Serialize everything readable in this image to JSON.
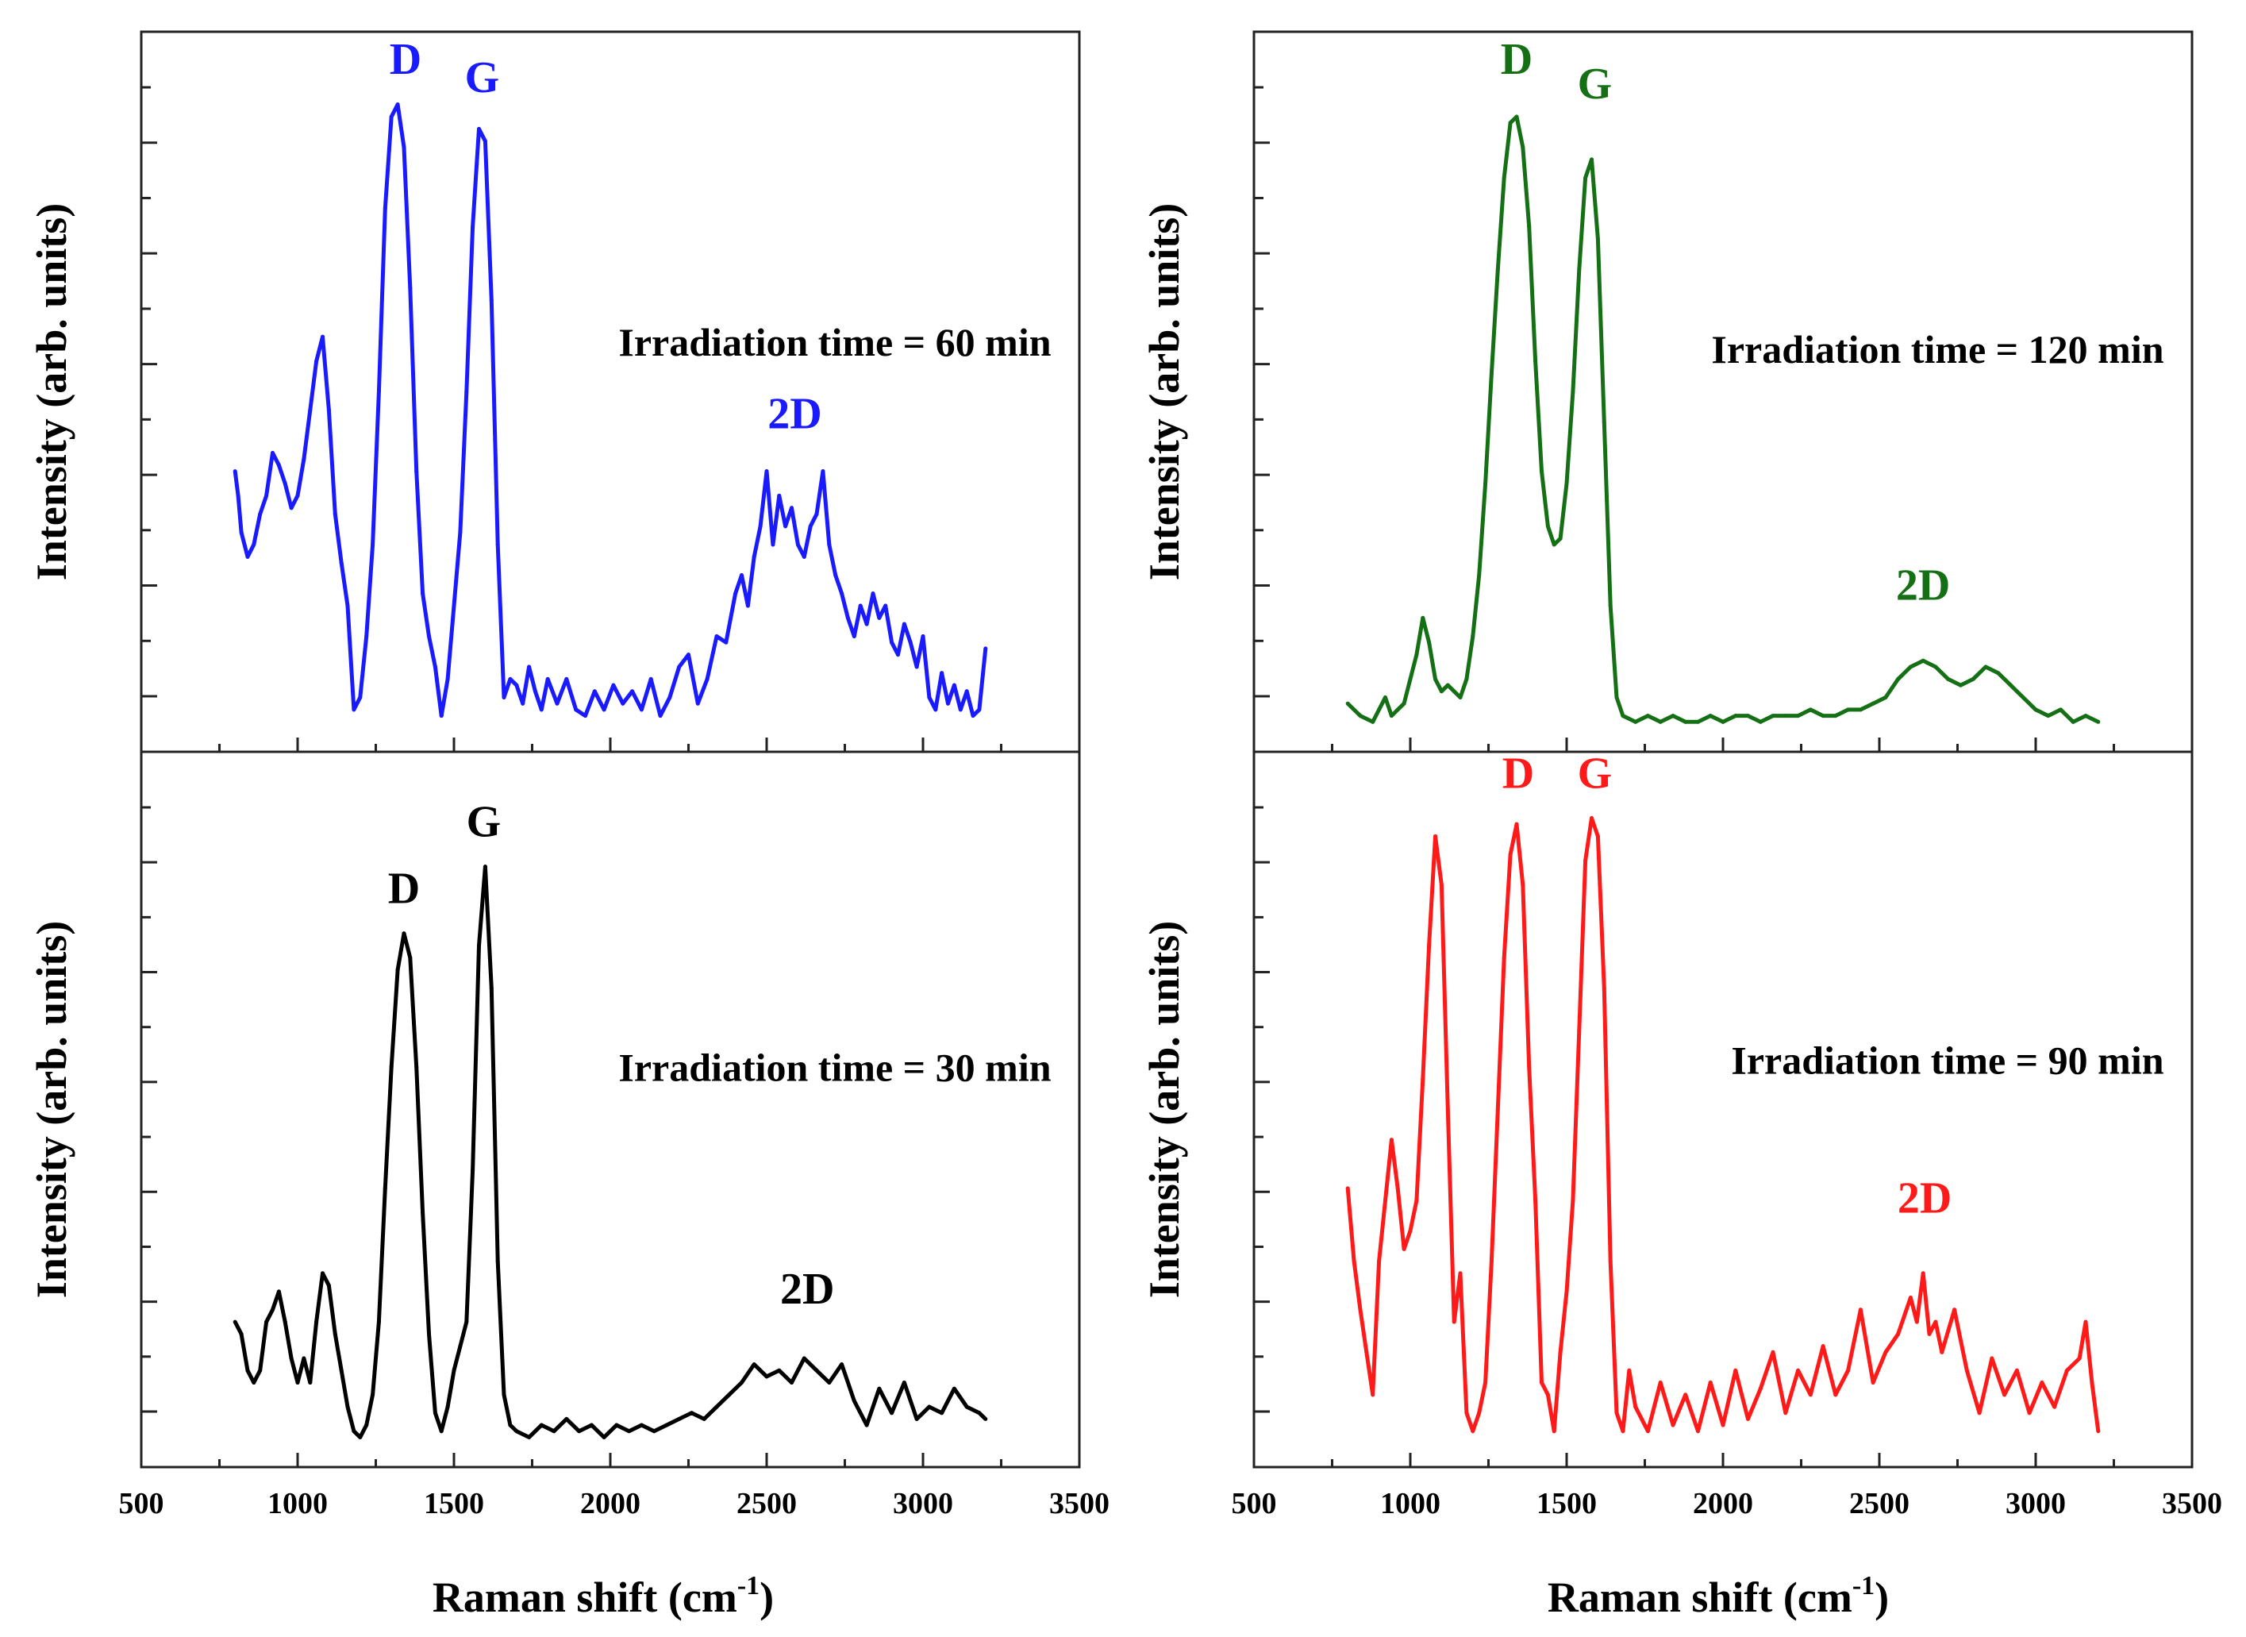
{
  "figure": {
    "xlabel_main": "Raman shift (cm",
    "xlabel_sup": "-1",
    "xlabel_end": ")",
    "ylabel": "Intensity (arb. units)"
  },
  "chart_data": [
    {
      "type": "line",
      "panel": "top-left",
      "color": "#1a1aff",
      "annotation": "Irradiation time = 60 min",
      "xlabel": "",
      "ylabel": "Intensity (arb. units)",
      "xlim": [
        500,
        3500
      ],
      "ylim": [
        0,
        1.1
      ],
      "xticks": [],
      "peak_labels": [
        {
          "text": "D",
          "x": 1345,
          "y": 1.07
        },
        {
          "text": "G",
          "x": 1590,
          "y": 1.04
        },
        {
          "text": "2D",
          "x": 2590,
          "y": 0.49
        }
      ],
      "x": [
        800,
        810,
        820,
        840,
        860,
        880,
        900,
        920,
        940,
        960,
        980,
        1000,
        1020,
        1040,
        1060,
        1080,
        1100,
        1120,
        1140,
        1160,
        1180,
        1200,
        1220,
        1240,
        1260,
        1280,
        1300,
        1320,
        1340,
        1360,
        1380,
        1400,
        1420,
        1440,
        1460,
        1480,
        1500,
        1520,
        1540,
        1560,
        1580,
        1600,
        1620,
        1640,
        1660,
        1680,
        1700,
        1720,
        1740,
        1760,
        1780,
        1800,
        1830,
        1860,
        1890,
        1920,
        1950,
        1980,
        2010,
        2040,
        2070,
        2100,
        2130,
        2160,
        2190,
        2220,
        2250,
        2280,
        2310,
        2340,
        2370,
        2400,
        2420,
        2440,
        2460,
        2480,
        2500,
        2520,
        2540,
        2560,
        2580,
        2600,
        2620,
        2640,
        2660,
        2680,
        2700,
        2720,
        2740,
        2760,
        2780,
        2800,
        2820,
        2840,
        2860,
        2880,
        2900,
        2920,
        2940,
        2960,
        2980,
        3000,
        3020,
        3040,
        3060,
        3080,
        3100,
        3120,
        3140,
        3160,
        3180,
        3200
      ],
      "y": [
        0.42,
        0.38,
        0.32,
        0.28,
        0.3,
        0.35,
        0.38,
        0.45,
        0.43,
        0.4,
        0.36,
        0.38,
        0.44,
        0.52,
        0.6,
        0.64,
        0.52,
        0.35,
        0.27,
        0.2,
        0.03,
        0.05,
        0.15,
        0.3,
        0.55,
        0.85,
        1.0,
        1.02,
        0.95,
        0.72,
        0.42,
        0.22,
        0.15,
        0.1,
        0.02,
        0.08,
        0.2,
        0.32,
        0.55,
        0.82,
        0.98,
        0.96,
        0.7,
        0.3,
        0.05,
        0.08,
        0.07,
        0.04,
        0.1,
        0.06,
        0.03,
        0.08,
        0.04,
        0.08,
        0.03,
        0.02,
        0.06,
        0.03,
        0.07,
        0.04,
        0.06,
        0.03,
        0.08,
        0.02,
        0.05,
        0.1,
        0.12,
        0.04,
        0.08,
        0.15,
        0.14,
        0.22,
        0.25,
        0.2,
        0.28,
        0.33,
        0.42,
        0.3,
        0.38,
        0.33,
        0.36,
        0.3,
        0.28,
        0.33,
        0.35,
        0.42,
        0.3,
        0.25,
        0.22,
        0.18,
        0.15,
        0.2,
        0.17,
        0.22,
        0.18,
        0.2,
        0.14,
        0.12,
        0.17,
        0.14,
        0.1,
        0.15,
        0.05,
        0.03,
        0.09,
        0.04,
        0.07,
        0.03,
        0.06,
        0.02,
        0.03,
        0.13
      ]
    },
    {
      "type": "line",
      "panel": "top-right",
      "color": "#157015",
      "annotation": "Irradiation time = 120 min",
      "xlabel": "",
      "ylabel": "Intensity (arb. units)",
      "xlim": [
        500,
        3500
      ],
      "ylim": [
        0,
        1.1
      ],
      "xticks": [],
      "peak_labels": [
        {
          "text": "D",
          "x": 1340,
          "y": 1.07
        },
        {
          "text": "G",
          "x": 1590,
          "y": 1.03
        },
        {
          "text": "2D",
          "x": 2640,
          "y": 0.21
        }
      ],
      "x": [
        800,
        840,
        880,
        900,
        920,
        940,
        960,
        980,
        1000,
        1020,
        1040,
        1060,
        1080,
        1100,
        1120,
        1140,
        1160,
        1180,
        1200,
        1220,
        1240,
        1260,
        1280,
        1300,
        1320,
        1340,
        1360,
        1380,
        1400,
        1420,
        1440,
        1460,
        1480,
        1500,
        1520,
        1540,
        1560,
        1580,
        1600,
        1620,
        1640,
        1660,
        1680,
        1720,
        1760,
        1800,
        1840,
        1880,
        1920,
        1960,
        2000,
        2040,
        2080,
        2120,
        2160,
        2200,
        2240,
        2280,
        2320,
        2360,
        2400,
        2440,
        2480,
        2520,
        2560,
        2600,
        2640,
        2680,
        2720,
        2760,
        2800,
        2840,
        2880,
        2920,
        2960,
        3000,
        3040,
        3080,
        3120,
        3160,
        3200
      ],
      "y": [
        0.04,
        0.02,
        0.01,
        0.03,
        0.05,
        0.02,
        0.03,
        0.04,
        0.08,
        0.12,
        0.18,
        0.14,
        0.08,
        0.06,
        0.07,
        0.06,
        0.05,
        0.08,
        0.15,
        0.25,
        0.4,
        0.58,
        0.75,
        0.9,
        0.99,
        1.0,
        0.95,
        0.82,
        0.6,
        0.42,
        0.33,
        0.3,
        0.31,
        0.4,
        0.55,
        0.75,
        0.9,
        0.93,
        0.8,
        0.5,
        0.2,
        0.05,
        0.02,
        0.01,
        0.02,
        0.01,
        0.02,
        0.01,
        0.01,
        0.02,
        0.01,
        0.02,
        0.02,
        0.01,
        0.02,
        0.02,
        0.02,
        0.03,
        0.02,
        0.02,
        0.03,
        0.03,
        0.04,
        0.05,
        0.08,
        0.1,
        0.11,
        0.1,
        0.08,
        0.07,
        0.08,
        0.1,
        0.09,
        0.07,
        0.05,
        0.03,
        0.02,
        0.03,
        0.01,
        0.02,
        0.01
      ]
    },
    {
      "type": "line",
      "panel": "bottom-left",
      "color": "#000000",
      "annotation": "Irradiation time = 30 min",
      "xlabel": "Raman shift (cm-1)",
      "ylabel": "Intensity (arb. units)",
      "xlim": [
        500,
        3500
      ],
      "ylim": [
        0,
        1.1
      ],
      "xticks": [
        500,
        1000,
        1500,
        2000,
        2500,
        3000,
        3500
      ],
      "peak_labels": [
        {
          "text": "D",
          "x": 1340,
          "y": 0.89
        },
        {
          "text": "G",
          "x": 1595,
          "y": 1.0
        },
        {
          "text": "2D",
          "x": 2630,
          "y": 0.23
        }
      ],
      "x": [
        800,
        820,
        840,
        860,
        880,
        900,
        920,
        940,
        960,
        980,
        1000,
        1020,
        1040,
        1060,
        1080,
        1100,
        1120,
        1140,
        1160,
        1180,
        1200,
        1220,
        1240,
        1260,
        1280,
        1300,
        1320,
        1340,
        1360,
        1380,
        1400,
        1420,
        1440,
        1460,
        1480,
        1500,
        1520,
        1540,
        1560,
        1580,
        1600,
        1620,
        1640,
        1660,
        1680,
        1700,
        1740,
        1780,
        1820,
        1860,
        1900,
        1940,
        1980,
        2020,
        2060,
        2100,
        2140,
        2180,
        2220,
        2260,
        2300,
        2340,
        2380,
        2420,
        2460,
        2500,
        2540,
        2580,
        2620,
        2660,
        2700,
        2740,
        2780,
        2820,
        2860,
        2900,
        2940,
        2980,
        3020,
        3060,
        3100,
        3140,
        3180,
        3200
      ],
      "y": [
        0.2,
        0.18,
        0.12,
        0.1,
        0.12,
        0.2,
        0.22,
        0.25,
        0.2,
        0.14,
        0.1,
        0.14,
        0.1,
        0.2,
        0.28,
        0.26,
        0.18,
        0.12,
        0.06,
        0.02,
        0.01,
        0.03,
        0.08,
        0.2,
        0.42,
        0.62,
        0.78,
        0.84,
        0.8,
        0.62,
        0.38,
        0.18,
        0.05,
        0.02,
        0.06,
        0.12,
        0.16,
        0.2,
        0.45,
        0.82,
        0.95,
        0.75,
        0.3,
        0.08,
        0.03,
        0.02,
        0.01,
        0.03,
        0.02,
        0.04,
        0.02,
        0.03,
        0.01,
        0.03,
        0.02,
        0.03,
        0.02,
        0.03,
        0.04,
        0.05,
        0.04,
        0.06,
        0.08,
        0.1,
        0.13,
        0.11,
        0.12,
        0.1,
        0.14,
        0.12,
        0.1,
        0.13,
        0.07,
        0.03,
        0.09,
        0.05,
        0.1,
        0.04,
        0.06,
        0.05,
        0.09,
        0.06,
        0.05,
        0.04
      ]
    },
    {
      "type": "line",
      "panel": "bottom-right",
      "color": "#ff1a1a",
      "annotation": "Irradiation time = 90 min",
      "xlabel": "Raman shift (cm-1)",
      "ylabel": "Intensity (arb. units)",
      "xlim": [
        500,
        3500
      ],
      "ylim": [
        0,
        1.1
      ],
      "xticks": [
        500,
        1000,
        1500,
        2000,
        2500,
        3000,
        3500
      ],
      "peak_labels": [
        {
          "text": "D",
          "x": 1345,
          "y": 1.08
        },
        {
          "text": "G",
          "x": 1590,
          "y": 1.08
        },
        {
          "text": "2D",
          "x": 2645,
          "y": 0.38
        }
      ],
      "x": [
        800,
        820,
        840,
        860,
        880,
        900,
        920,
        940,
        960,
        980,
        1000,
        1020,
        1040,
        1060,
        1080,
        1100,
        1120,
        1140,
        1160,
        1180,
        1200,
        1220,
        1240,
        1260,
        1280,
        1300,
        1320,
        1340,
        1360,
        1380,
        1400,
        1420,
        1440,
        1460,
        1480,
        1500,
        1520,
        1540,
        1560,
        1580,
        1600,
        1620,
        1640,
        1660,
        1680,
        1700,
        1720,
        1760,
        1800,
        1840,
        1880,
        1920,
        1960,
        2000,
        2040,
        2080,
        2120,
        2160,
        2200,
        2240,
        2280,
        2320,
        2360,
        2400,
        2440,
        2480,
        2520,
        2560,
        2600,
        2620,
        2640,
        2660,
        2680,
        2700,
        2740,
        2780,
        2820,
        2860,
        2900,
        2940,
        2980,
        3020,
        3060,
        3100,
        3140,
        3160,
        3180,
        3200
      ],
      "y": [
        0.42,
        0.3,
        0.22,
        0.15,
        0.08,
        0.3,
        0.4,
        0.5,
        0.42,
        0.32,
        0.35,
        0.4,
        0.6,
        0.82,
        1.0,
        0.92,
        0.55,
        0.2,
        0.28,
        0.05,
        0.02,
        0.05,
        0.1,
        0.3,
        0.55,
        0.8,
        0.97,
        1.02,
        0.92,
        0.62,
        0.4,
        0.1,
        0.08,
        0.02,
        0.15,
        0.25,
        0.4,
        0.68,
        0.96,
        1.03,
        1.0,
        0.75,
        0.3,
        0.05,
        0.02,
        0.12,
        0.06,
        0.02,
        0.1,
        0.03,
        0.08,
        0.02,
        0.1,
        0.03,
        0.12,
        0.04,
        0.09,
        0.15,
        0.05,
        0.12,
        0.08,
        0.16,
        0.08,
        0.12,
        0.22,
        0.1,
        0.15,
        0.18,
        0.24,
        0.2,
        0.28,
        0.18,
        0.2,
        0.15,
        0.22,
        0.12,
        0.05,
        0.14,
        0.08,
        0.12,
        0.05,
        0.1,
        0.06,
        0.12,
        0.14,
        0.2,
        0.1,
        0.02
      ]
    }
  ]
}
